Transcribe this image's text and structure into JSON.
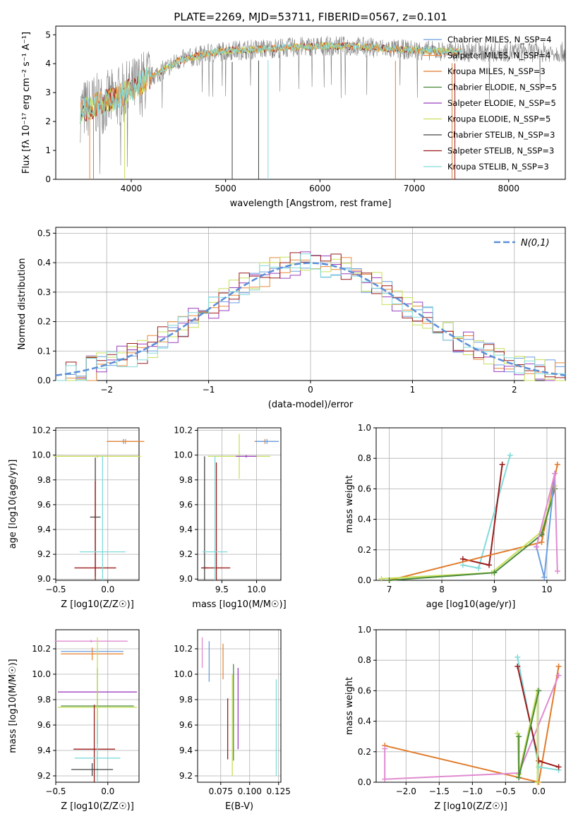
{
  "colors": {
    "chabrier_miles": "#6a9ee0",
    "salpeter_miles": "#e88a3a",
    "kroupa_miles": "#e07b2a",
    "chabrier_elodie": "#4a8a3a",
    "salpeter_elodie": "#9b3fbf",
    "kroupa_elodie": "#c7e05a",
    "chabrier_stelib": "#444444",
    "salpeter_stelib": "#9b1b1b",
    "kroupa_stelib": "#82dada",
    "normal": "#5b8fd8",
    "observed": "#808080",
    "pink": "#e08ad0"
  },
  "chart_data": [
    {
      "id": "spectrum",
      "type": "line",
      "title": "PLATE=2269, MJD=53711, FIBERID=0567, z=0.101",
      "xlabel": "wavelength [Angstrom, rest frame]",
      "ylabel": "Flux [fλ 10⁻¹⁷ erg cm⁻² s⁻¹ A⁻¹]",
      "xlim": [
        3200,
        8600
      ],
      "ylim": [
        0,
        5.3
      ],
      "xticks": [
        4000,
        5000,
        6000,
        7000,
        8000
      ],
      "yticks": [
        0,
        1,
        2,
        3,
        4,
        5
      ],
      "legend_position": "top-right",
      "legend": [
        "Chabrier MILES, N_SSP=4",
        "Salpeter MILES, N_SSP=4",
        "Kroupa MILES, N_SSP=3",
        "Chabrier ELODIE, N_SSP=5",
        "Salpeter ELODIE, N_SSP=5",
        "Kroupa ELODIE, N_SSP=5",
        "Chabrier STELIB, N_SSP=3",
        "Salpeter STELIB, N_SSP=3",
        "Kroupa STELIB, N_SSP=3"
      ],
      "continuum": [
        [
          3450,
          2.35
        ],
        [
          3600,
          2.55
        ],
        [
          3800,
          2.75
        ],
        [
          3950,
          3.0
        ],
        [
          4100,
          3.35
        ],
        [
          4300,
          3.7
        ],
        [
          4500,
          4.1
        ],
        [
          4800,
          4.35
        ],
        [
          5000,
          4.45
        ],
        [
          5300,
          4.5
        ],
        [
          5600,
          4.55
        ],
        [
          6000,
          4.62
        ],
        [
          6400,
          4.6
        ],
        [
          6800,
          4.5
        ],
        [
          7200,
          4.45
        ],
        [
          7500,
          4.4
        ]
      ]
    },
    {
      "id": "residuals",
      "type": "bar",
      "xlabel": "(data-model)/error",
      "ylabel": "Normed distribution",
      "xlim": [
        -2.5,
        2.5
      ],
      "ylim": [
        0,
        0.52
      ],
      "xticks": [
        -2,
        -1,
        0,
        1,
        2
      ],
      "yticks": [
        0.0,
        0.1,
        0.2,
        0.3,
        0.4,
        0.5
      ],
      "normal_label": "N(0,1)",
      "legend_position": "top-right",
      "bin_width": 0.1
    },
    {
      "id": "age_vs_Z",
      "type": "scatter",
      "xlabel": "Z [log10(Z/Z☉)]",
      "ylabel": "age [log10(age/yr)]",
      "xlim": [
        -0.5,
        0.3
      ],
      "ylim": [
        8.99,
        10.22
      ],
      "xticks": [
        -0.5,
        0.0
      ],
      "yticks": [
        9.0,
        9.2,
        9.4,
        9.6,
        9.8,
        10.0,
        10.2
      ],
      "points": [
        {
          "series": "chabrier_miles",
          "x": 0.15,
          "y": 10.11,
          "xerr": 0.15,
          "yerr": 0.02
        },
        {
          "series": "salpeter_miles",
          "x": 0.17,
          "y": 10.11,
          "xerr": 0.18,
          "yerr": 0.02
        },
        {
          "series": "kroupa_miles",
          "x": -0.1,
          "y": 9.99,
          "xerr": 0.38,
          "yerr": 0.01
        },
        {
          "series": "kroupa_elodie",
          "x": -0.1,
          "y": 9.99,
          "xerr": 0.42,
          "yerr": 0.01
        },
        {
          "series": "chabrier_stelib",
          "x": -0.12,
          "y": 9.5,
          "xerr": 0.05,
          "yerr": 0.48
        },
        {
          "series": "salpeter_stelib",
          "x": -0.12,
          "y": 9.09,
          "xerr": 0.2,
          "yerr": 0.7
        },
        {
          "series": "kroupa_stelib",
          "x": -0.05,
          "y": 9.22,
          "xerr": 0.22,
          "yerr": 0.77
        }
      ]
    },
    {
      "id": "age_vs_mass",
      "type": "scatter",
      "xlabel": "mass [log10(M/M☉)]",
      "xlim": [
        9.15,
        10.35
      ],
      "ylim": [
        8.99,
        10.22
      ],
      "xticks": [
        9.5,
        10.0
      ],
      "yticks": [
        9.0,
        9.2,
        9.4,
        9.6,
        9.8,
        10.0,
        10.2
      ],
      "points": [
        {
          "series": "salpeter_miles",
          "x": 10.12,
          "y": 10.11,
          "xerr": 0.15,
          "yerr": 0.02
        },
        {
          "series": "chabrier_miles",
          "x": 10.15,
          "y": 10.11,
          "xerr": 0.17,
          "yerr": 0.02
        },
        {
          "series": "kroupa_elodie",
          "x": 9.75,
          "y": 9.99,
          "xerr": 0.45,
          "yerr": 0.18
        },
        {
          "series": "salpeter_elodie",
          "x": 9.85,
          "y": 9.99,
          "xerr": 0.15,
          "yerr": 0.01
        },
        {
          "series": "chabrier_stelib",
          "x": 9.25,
          "y": 9.09,
          "xerr": 0.05,
          "yerr": 0.9
        },
        {
          "series": "salpeter_stelib",
          "x": 9.42,
          "y": 9.09,
          "xerr": 0.2,
          "yerr": 0.85
        },
        {
          "series": "kroupa_stelib",
          "x": 9.4,
          "y": 9.22,
          "xerr": 0.18,
          "yerr": 0.77
        }
      ]
    },
    {
      "id": "weight_vs_age",
      "type": "line",
      "xlabel": "age [log10(age/yr)]",
      "ylabel": "mass weight",
      "xlim": [
        6.75,
        10.35
      ],
      "ylim": [
        0,
        1.0
      ],
      "xticks": [
        7,
        8,
        9,
        10
      ],
      "yticks": [
        0.0,
        0.2,
        0.4,
        0.6,
        0.8,
        1.0
      ],
      "series": [
        {
          "series": "kroupa_stelib",
          "x": [
            8.4,
            8.7,
            9.3
          ],
          "y": [
            0.1,
            0.08,
            0.82
          ]
        },
        {
          "series": "salpeter_stelib",
          "x": [
            8.4,
            8.9,
            9.15
          ],
          "y": [
            0.14,
            0.1,
            0.76
          ]
        },
        {
          "series": "kroupa_miles",
          "x": [
            7.0,
            9.9,
            10.2
          ],
          "y": [
            0.0,
            0.25,
            0.76
          ]
        },
        {
          "series": "kroupa_elodie",
          "x": [
            6.85,
            8.95,
            9.9,
            10.15
          ],
          "y": [
            0.01,
            0.05,
            0.32,
            0.62
          ]
        },
        {
          "series": "chabrier_elodie",
          "x": [
            7.0,
            9.0,
            9.9,
            10.15
          ],
          "y": [
            0.0,
            0.05,
            0.3,
            0.6
          ]
        },
        {
          "series": "chabrier_miles",
          "x": [
            9.8,
            9.95,
            10.15
          ],
          "y": [
            0.22,
            0.02,
            0.7
          ]
        },
        {
          "series": "pink",
          "x": [
            9.8,
            10.15,
            10.2
          ],
          "y": [
            0.22,
            0.7,
            0.06
          ]
        }
      ]
    },
    {
      "id": "mass_vs_Z",
      "type": "scatter",
      "xlabel": "Z [log10(Z/Z☉)]",
      "ylabel": "mass [log10(M/M☉)]",
      "xlim": [
        -0.5,
        0.3
      ],
      "ylim": [
        9.15,
        10.35
      ],
      "xticks": [
        -0.5,
        0.0
      ],
      "yticks": [
        9.2,
        9.4,
        9.6,
        9.8,
        10.0,
        10.2
      ],
      "points": [
        {
          "series": "pink",
          "x": -0.16,
          "y": 10.26,
          "xerr": 0.35,
          "yerr": 0.01
        },
        {
          "series": "chabrier_miles",
          "x": -0.15,
          "y": 10.18,
          "xerr": 0.3,
          "yerr": 0.01
        },
        {
          "series": "salpeter_miles",
          "x": -0.15,
          "y": 10.16,
          "xerr": 0.3,
          "yerr": 0.05
        },
        {
          "series": "salpeter_elodie",
          "x": -0.1,
          "y": 9.86,
          "xerr": 0.38,
          "yerr": 0.01
        },
        {
          "series": "chabrier_elodie",
          "x": -0.1,
          "y": 9.75,
          "xerr": 0.35,
          "yerr": 0.3
        },
        {
          "series": "kroupa_elodie",
          "x": -0.1,
          "y": 9.74,
          "xerr": 0.38,
          "yerr": 0.55
        },
        {
          "series": "salpeter_stelib",
          "x": -0.13,
          "y": 9.41,
          "xerr": 0.2,
          "yerr": 0.35
        },
        {
          "series": "kroupa_stelib",
          "x": -0.1,
          "y": 9.34,
          "xerr": 0.22,
          "yerr": 0.3
        },
        {
          "series": "chabrier_stelib",
          "x": -0.15,
          "y": 9.25,
          "xerr": 0.2,
          "yerr": 0.05
        }
      ]
    },
    {
      "id": "mass_vs_ebv",
      "type": "scatter",
      "xlabel": "E(B-V)",
      "xlim": [
        0.055,
        0.127
      ],
      "ylim": [
        9.15,
        10.35
      ],
      "xticks": [
        0.075,
        0.1,
        0.125
      ],
      "xticklabels": [
        "0.075",
        "0.100",
        "0.125"
      ],
      "yticks": [
        9.2,
        9.4,
        9.6,
        9.8,
        10.0,
        10.2
      ],
      "points": [
        {
          "series": "pink",
          "x": 0.059,
          "y": 10.17,
          "yerr": 0.12
        },
        {
          "series": "chabrier_miles",
          "x": 0.065,
          "y": 10.1,
          "yerr": 0.16
        },
        {
          "series": "salpeter_miles",
          "x": 0.077,
          "y": 10.1,
          "yerr": 0.14
        },
        {
          "series": "salpeter_elodie",
          "x": 0.09,
          "y": 9.73,
          "yerr": 0.32
        },
        {
          "series": "kroupa_elodie",
          "x": 0.085,
          "y": 9.6,
          "yerr": 0.4
        },
        {
          "series": "chabrier_elodie",
          "x": 0.086,
          "y": 9.7,
          "yerr": 0.38
        },
        {
          "series": "salpeter_stelib",
          "x": 0.081,
          "y": 9.57,
          "yerr": 0.24
        },
        {
          "series": "kroupa_stelib",
          "x": 0.123,
          "y": 9.58,
          "yerr": 0.38
        }
      ]
    },
    {
      "id": "weight_vs_Z",
      "type": "line",
      "xlabel": "Z [log10(Z/Z☉)]",
      "ylabel": "mass weight",
      "xlim": [
        -2.45,
        0.4
      ],
      "ylim": [
        0,
        1.0
      ],
      "xticks": [
        -2.0,
        -1.5,
        -1.0,
        -0.5,
        0.0
      ],
      "yticks": [
        0.0,
        0.2,
        0.4,
        0.6,
        0.8,
        1.0
      ],
      "series": [
        {
          "series": "kroupa_miles",
          "x": [
            -2.32,
            0.0,
            0.3
          ],
          "y": [
            0.24,
            0.0,
            0.76
          ]
        },
        {
          "series": "pink",
          "x": [
            -2.32,
            -2.32,
            -0.3,
            0.3
          ],
          "y": [
            0.22,
            0.02,
            0.06,
            0.7
          ]
        },
        {
          "series": "kroupa_stelib",
          "x": [
            -0.32,
            0.0,
            0.3
          ],
          "y": [
            0.82,
            0.1,
            0.08
          ]
        },
        {
          "series": "salpeter_stelib",
          "x": [
            -0.32,
            0.0,
            0.3
          ],
          "y": [
            0.76,
            0.14,
            0.1
          ]
        },
        {
          "series": "kroupa_elodie",
          "x": [
            -0.32,
            -0.3,
            -0.02,
            -0.02
          ],
          "y": [
            0.32,
            0.05,
            0.6,
            0.0
          ]
        },
        {
          "series": "chabrier_elodie",
          "x": [
            -0.3,
            -0.3,
            0.0
          ],
          "y": [
            0.3,
            0.03,
            0.6
          ]
        }
      ]
    }
  ]
}
